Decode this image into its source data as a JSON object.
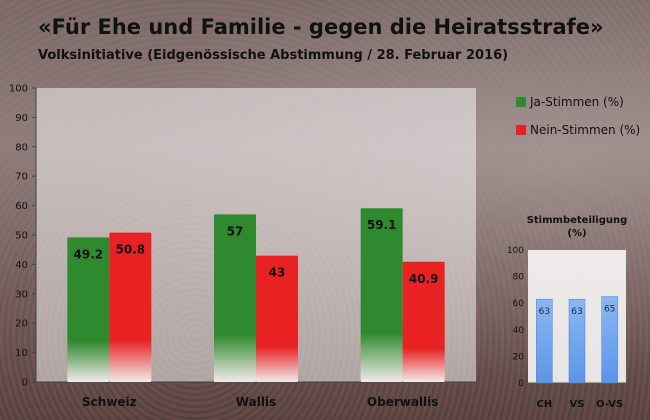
{
  "title": "«Für Ehe und Familie - gegen die Heiratsstrafe»",
  "subtitle": "Volksinitiative (Eidgenössische Abstimmung / 28. Februar 2016)",
  "colors": {
    "ja": "#2f8a2f",
    "nein": "#e82222",
    "turnout": "#5b95e8"
  },
  "chart_data": [
    {
      "type": "bar",
      "categories": [
        "Schweiz",
        "Wallis",
        "Oberwallis"
      ],
      "series": [
        {
          "name": "Ja-Stimmen (%)",
          "values": [
            49.2,
            57,
            59.1
          ]
        },
        {
          "name": "Nein-Stimmen (%)",
          "values": [
            50.8,
            43,
            40.9
          ]
        }
      ],
      "ylim": [
        0,
        100
      ],
      "yticks": [
        0,
        10,
        20,
        30,
        40,
        50,
        60,
        70,
        80,
        90,
        100
      ],
      "legend": "right"
    },
    {
      "type": "bar",
      "title": "Stimmbeteiligung (%)",
      "categories": [
        "CH",
        "VS",
        "O-VS"
      ],
      "values": [
        63,
        63,
        65
      ],
      "ylim": [
        0,
        100
      ],
      "yticks": [
        0,
        20,
        40,
        60,
        80,
        100
      ]
    }
  ]
}
